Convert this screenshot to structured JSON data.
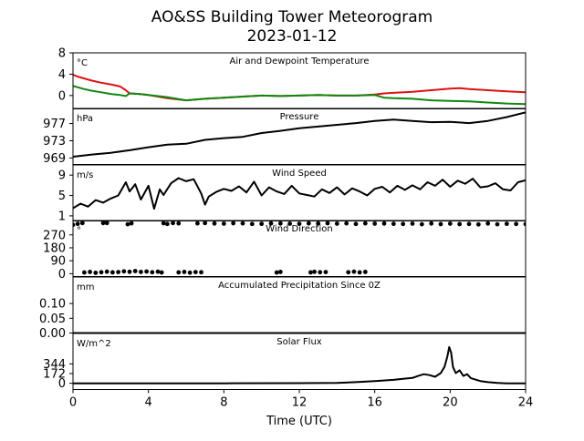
{
  "title": "AO&SS Building Tower Meteorogram",
  "subtitle": "2023-01-12",
  "xlabel": "Time (UTC)",
  "colors": {
    "temperature": "#dd1111",
    "dewpoint": "#118811",
    "line": "#000000"
  },
  "chart_data": {
    "type": "line",
    "x_domain": [
      0,
      24
    ],
    "x_ticks": [
      0,
      4,
      8,
      12,
      16,
      20,
      24
    ],
    "grid": false,
    "panels": [
      {
        "id": "temp",
        "title": "Air and Dewpoint Temperature",
        "unit": "°C",
        "ylim": [
          -2.5,
          8
        ],
        "yticks": [
          0,
          4,
          8
        ],
        "series": [
          {
            "color": "#dd1111",
            "style": "line",
            "x": [
              0.0,
              0.3,
              0.6,
              1.0,
              1.5,
              2.0,
              2.5,
              2.8,
              3.0,
              3.5,
              4.0,
              5.0,
              6.0,
              7.0,
              8.0,
              9.0,
              10.0,
              11.0,
              12.0,
              13.0,
              14.0,
              15.0,
              16.0,
              16.5,
              17.0,
              18.0,
              19.0,
              20.0,
              20.5,
              21.0,
              22.0,
              23.0,
              24.0
            ],
            "y": [
              3.9,
              3.5,
              3.2,
              2.8,
              2.4,
              2.1,
              1.7,
              1.0,
              0.4,
              0.3,
              0.1,
              -0.5,
              -0.9,
              -0.6,
              -0.4,
              -0.2,
              0.0,
              -0.1,
              0.0,
              0.1,
              0.0,
              0.0,
              0.2,
              0.4,
              0.5,
              0.7,
              1.0,
              1.3,
              1.4,
              1.2,
              1.0,
              0.8,
              0.6
            ]
          },
          {
            "color": "#118811",
            "style": "line",
            "x": [
              0.0,
              0.3,
              0.6,
              1.0,
              1.5,
              2.0,
              2.5,
              2.8,
              3.0,
              3.5,
              4.0,
              5.0,
              6.0,
              7.0,
              8.0,
              9.0,
              10.0,
              11.0,
              12.0,
              13.0,
              14.0,
              15.0,
              16.0,
              16.5,
              17.0,
              18.0,
              19.0,
              20.0,
              21.0,
              22.0,
              23.0,
              24.0
            ],
            "y": [
              1.8,
              1.5,
              1.2,
              0.9,
              0.6,
              0.3,
              0.1,
              -0.1,
              0.4,
              0.3,
              0.1,
              -0.3,
              -0.9,
              -0.6,
              -0.4,
              -0.2,
              0.0,
              -0.1,
              0.0,
              0.1,
              0.0,
              0.0,
              0.1,
              -0.4,
              -0.5,
              -0.6,
              -0.9,
              -1.0,
              -1.1,
              -1.3,
              -1.5,
              -1.6
            ]
          }
        ]
      },
      {
        "id": "pressure",
        "title": "Pressure",
        "unit": "hPa",
        "ylim": [
          967.5,
          980.5
        ],
        "yticks": [
          969,
          973,
          977
        ],
        "series": [
          {
            "color": "#000000",
            "style": "line",
            "x": [
              0,
              1,
              2,
              3,
              4,
              5,
              6,
              7,
              8,
              9,
              10,
              11,
              12,
              13,
              14,
              15,
              16,
              17,
              18,
              19,
              20,
              21,
              22,
              23,
              24
            ],
            "y": [
              969.3,
              969.8,
              970.2,
              970.8,
              971.5,
              972.1,
              972.3,
              973.2,
              973.6,
              973.9,
              974.8,
              975.3,
              975.9,
              976.3,
              976.7,
              977.1,
              977.6,
              977.9,
              977.6,
              977.3,
              977.4,
              977.1,
              977.6,
              978.5,
              979.6
            ]
          }
        ]
      },
      {
        "id": "wind_speed",
        "title": "Wind Speed",
        "unit": "m/s",
        "ylim": [
          0,
          11
        ],
        "yticks": [
          1,
          5,
          9
        ],
        "series": [
          {
            "color": "#000000",
            "style": "line",
            "x": [
              0,
              0.4,
              0.8,
              1.2,
              1.6,
              2.0,
              2.4,
              2.8,
              3.0,
              3.3,
              3.6,
              4.0,
              4.3,
              4.6,
              4.8,
              5.2,
              5.6,
              6.0,
              6.4,
              6.8,
              7.0,
              7.2,
              7.6,
              8.0,
              8.4,
              8.8,
              9.2,
              9.6,
              10.0,
              10.4,
              10.8,
              11.2,
              11.6,
              12.0,
              12.4,
              12.8,
              13.2,
              13.6,
              14.0,
              14.4,
              14.8,
              15.2,
              15.6,
              16.0,
              16.4,
              16.8,
              17.2,
              17.6,
              18.0,
              18.4,
              18.8,
              19.2,
              19.6,
              20.0,
              20.4,
              20.8,
              21.2,
              21.6,
              22.0,
              22.4,
              22.8,
              23.2,
              23.6,
              24.0
            ],
            "y": [
              2.5,
              3.4,
              2.8,
              4.1,
              3.6,
              4.4,
              5.0,
              7.6,
              5.8,
              7.2,
              4.2,
              6.9,
              2.4,
              6.2,
              5.1,
              7.4,
              8.4,
              7.8,
              8.2,
              5.4,
              3.2,
              4.8,
              5.7,
              6.3,
              5.9,
              6.8,
              5.6,
              7.7,
              5.0,
              6.6,
              5.8,
              5.3,
              6.9,
              5.4,
              5.1,
              4.8,
              6.2,
              5.5,
              6.6,
              5.2,
              6.4,
              5.8,
              5.0,
              6.3,
              6.7,
              5.6,
              6.9,
              6.1,
              7.0,
              6.2,
              7.6,
              6.9,
              8.1,
              6.7,
              7.9,
              7.3,
              8.3,
              6.6,
              6.8,
              7.4,
              6.2,
              6.0,
              7.6,
              8.0
            ]
          }
        ]
      },
      {
        "id": "wind_dir",
        "title": "Wind Direction",
        "unit": "°",
        "ylim": [
          -20,
          370
        ],
        "yticks": [
          0,
          90,
          180,
          270
        ],
        "series": [
          {
            "color": "#000000",
            "style": "points",
            "x": [
              0,
              0.25,
              0.5,
              1.6,
              1.8,
              2.9,
              3.1,
              4.8,
              5.0,
              5.3,
              5.6,
              6.6,
              7.0,
              7.5,
              8.0,
              8.5,
              9.0,
              9.5,
              10.0,
              10.5,
              11.0,
              11.5,
              12.0,
              12.5,
              13.0,
              13.5,
              14.0,
              14.5,
              15.0,
              15.5,
              16.0,
              16.5,
              17.0,
              17.5,
              18.0,
              18.5,
              19.0,
              19.5,
              20.0,
              20.5,
              21.0,
              21.5,
              22.0,
              22.5,
              23.0,
              23.5,
              24.0
            ],
            "y": [
              340,
              347,
              352,
              352,
              352,
              344,
              350,
              351,
              346,
              352,
              350,
              350,
              352,
              349,
              348,
              351,
              350,
              346,
              347,
              350,
              349,
              348,
              347,
              350,
              349,
              351,
              348,
              350,
              346,
              350,
              348,
              349,
              347,
              346,
              348,
              344,
              349,
              345,
              348,
              345,
              346,
              343,
              349,
              344,
              347,
              346,
              345
            ]
          },
          {
            "color": "#000000",
            "style": "points",
            "x": [
              0.6,
              0.9,
              1.2,
              1.5,
              1.8,
              2.1,
              2.4,
              2.7,
              3.0,
              3.3,
              3.6,
              3.9,
              4.2,
              4.5,
              4.7,
              5.6,
              5.9,
              6.2,
              6.5,
              6.8,
              10.8,
              11.0,
              12.6,
              12.8,
              13.1,
              13.4,
              14.6,
              14.9,
              15.2,
              15.5
            ],
            "y": [
              8,
              12,
              6,
              10,
              14,
              9,
              11,
              16,
              13,
              18,
              12,
              15,
              10,
              14,
              8,
              9,
              12,
              7,
              11,
              10,
              8,
              12,
              9,
              13,
              10,
              11,
              10,
              14,
              9,
              12
            ]
          }
        ]
      },
      {
        "id": "precip",
        "title": "Accumulated Precipitation Since 0Z",
        "unit": "mm",
        "ylim": [
          0,
          0.19
        ],
        "yticks": [
          0.0,
          0.05,
          0.1
        ],
        "series": [
          {
            "color": "#000000",
            "style": "line",
            "x": [
              0,
              24
            ],
            "y": [
              0,
              0
            ]
          }
        ]
      },
      {
        "id": "solar",
        "title": "Solar Flux",
        "unit": "W/m^2",
        "ylim": [
          -110,
          880
        ],
        "yticks": [
          0,
          172,
          344
        ],
        "series": [
          {
            "color": "#000000",
            "style": "line",
            "x": [
              0,
              7,
              8,
              12,
              14,
              15,
              16,
              17,
              17.5,
              18,
              18.3,
              18.6,
              18.9,
              19.2,
              19.5,
              19.7,
              19.85,
              19.95,
              20.05,
              20.15,
              20.3,
              20.5,
              20.7,
              20.9,
              21.1,
              21.3,
              21.6,
              22,
              22.5,
              23,
              24
            ],
            "y": [
              0,
              0,
              0,
              2,
              8,
              20,
              40,
              60,
              80,
              95,
              130,
              160,
              145,
              115,
              180,
              290,
              470,
              640,
              540,
              290,
              180,
              230,
              130,
              160,
              90,
              70,
              40,
              20,
              6,
              0,
              0
            ]
          }
        ]
      }
    ]
  }
}
